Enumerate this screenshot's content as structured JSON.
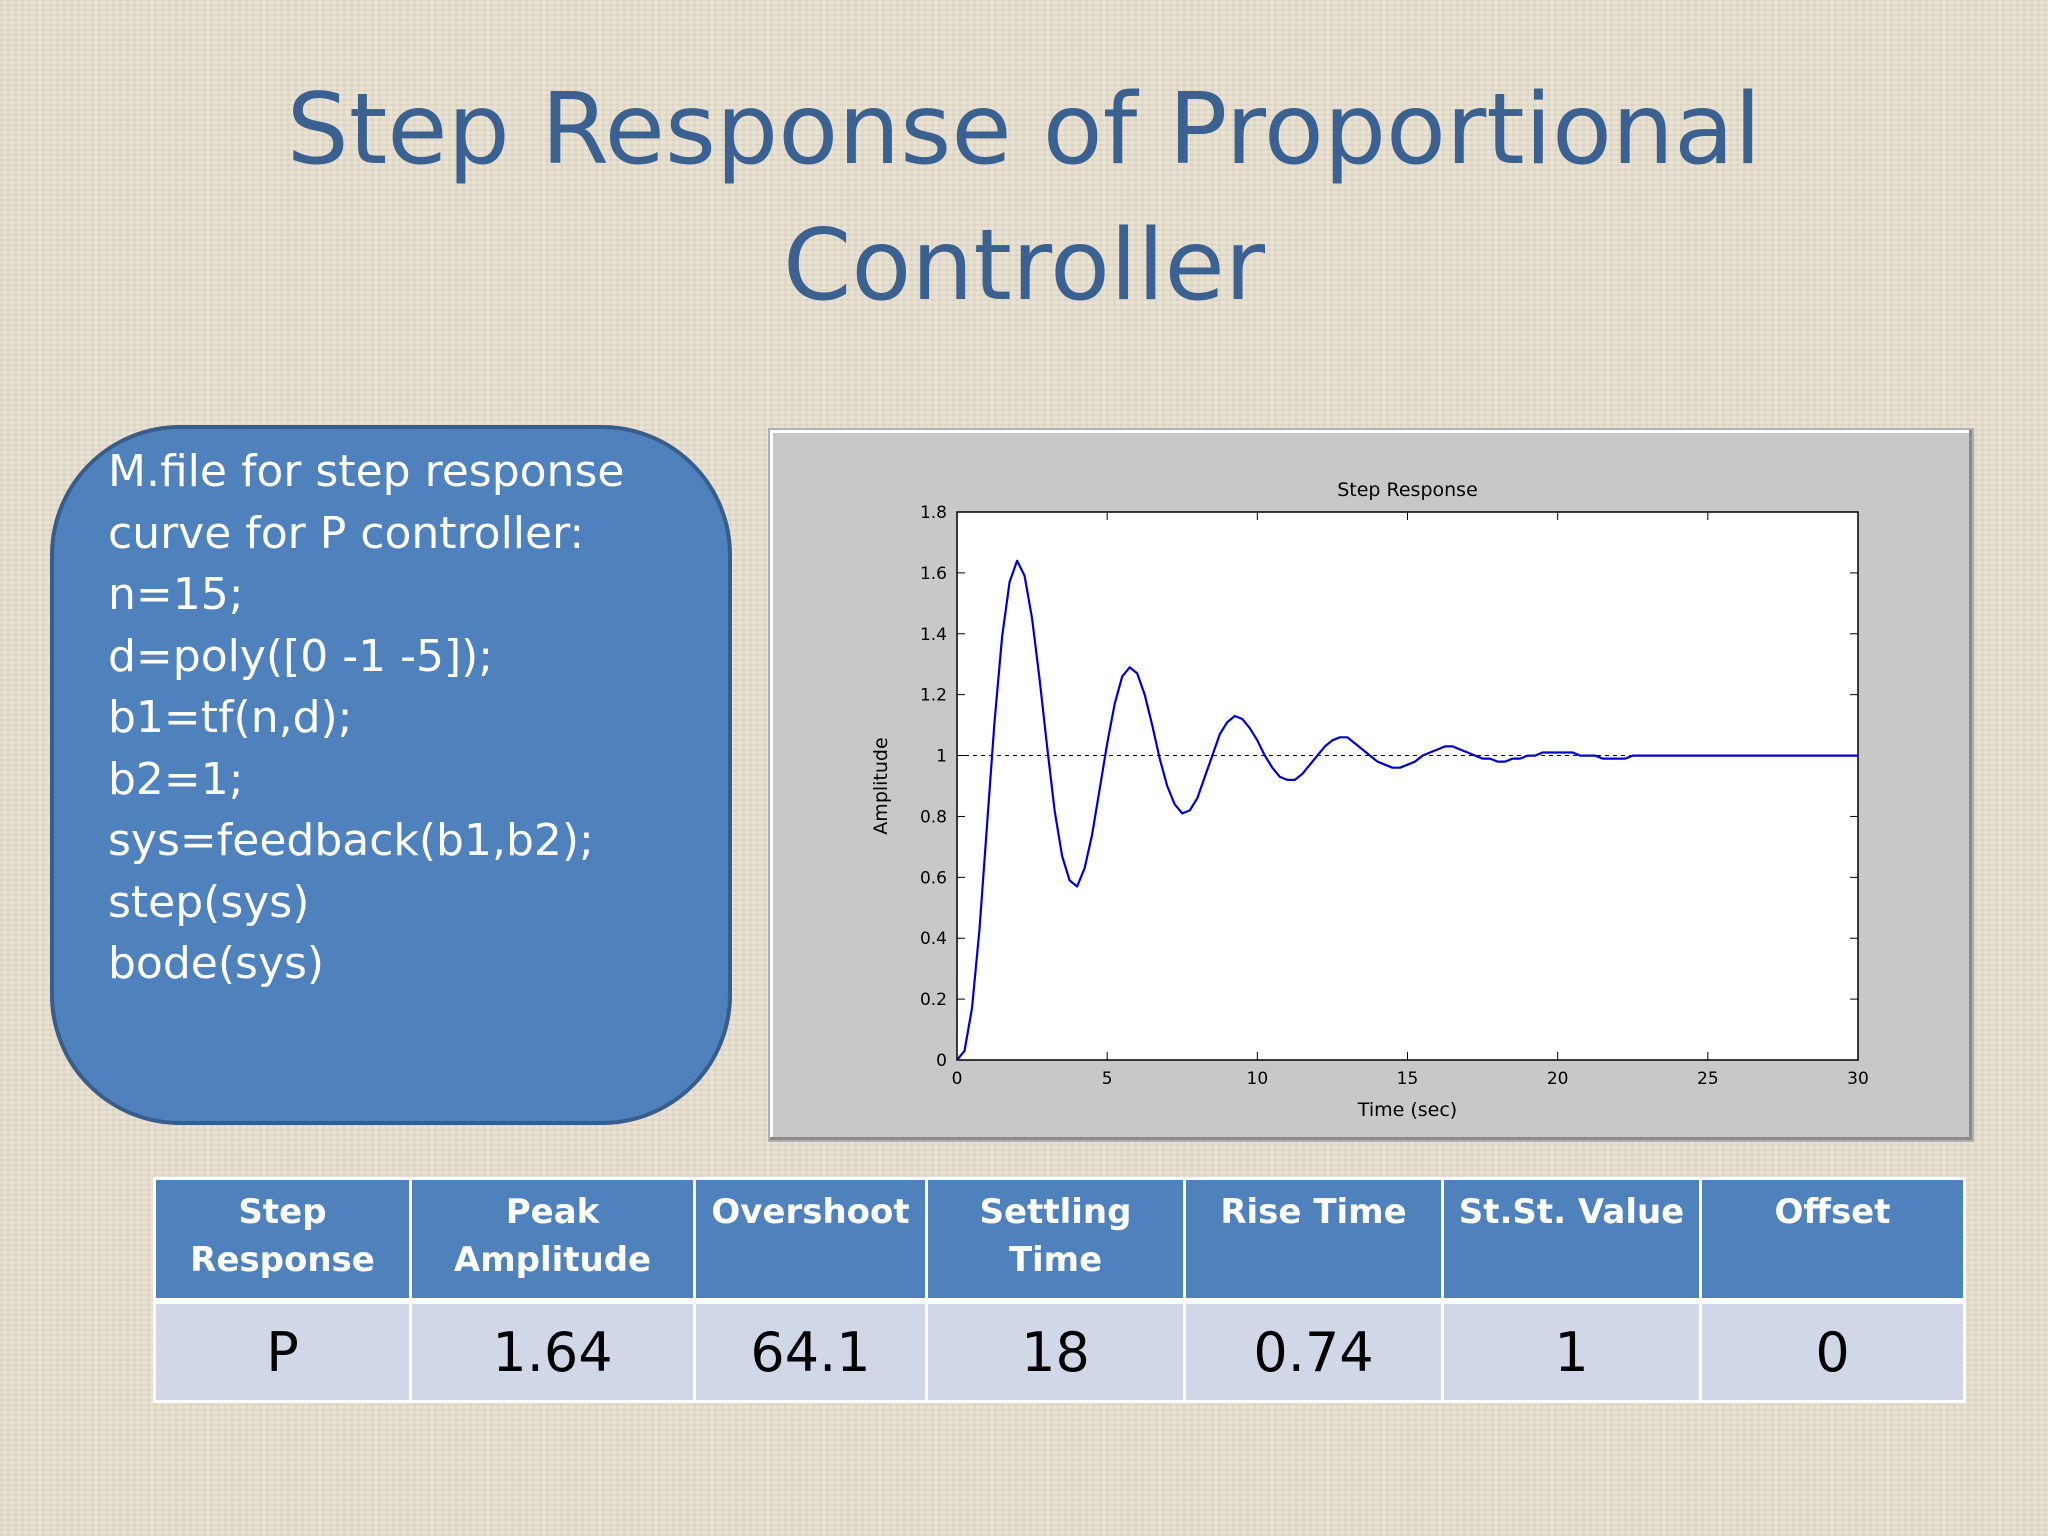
{
  "slide": {
    "title_line1": "Step Response of Proportional",
    "title_line2": "Controller"
  },
  "code_box": {
    "lines": [
      "M.file for step response",
      "curve for P controller:",
      "n=15;",
      "d=poly([0 -1 -5]);",
      "b1=tf(n,d);",
      "b2=1;",
      "sys=feedback(b1,b2);",
      "step(sys)",
      "bode(sys)"
    ]
  },
  "chart_data": {
    "type": "line",
    "title": "Step Response",
    "xlabel": "Time (sec)",
    "ylabel": "Amplitude",
    "xlim": [
      0,
      30
    ],
    "ylim": [
      0,
      1.8
    ],
    "xticks": [
      "0",
      "5",
      "10",
      "15",
      "20",
      "25",
      "30"
    ],
    "yticks": [
      "0",
      "0.2",
      "0.4",
      "0.6",
      "0.8",
      "1",
      "1.2",
      "1.4",
      "1.6",
      "1.8"
    ],
    "reference_line": 1,
    "grid": false,
    "line_color": "#0000cc",
    "series": [
      {
        "x": [
          0,
          0.25,
          0.5,
          0.75,
          1.0,
          1.25,
          1.5,
          1.75,
          2.0,
          2.25,
          2.5,
          2.75,
          3.0,
          3.25,
          3.5,
          3.75,
          4.0,
          4.25,
          4.5,
          4.75,
          5.0,
          5.25,
          5.5,
          5.75,
          6.0,
          6.25,
          6.5,
          6.75,
          7.0,
          7.25,
          7.5,
          7.75,
          8.0,
          8.25,
          8.5,
          8.75,
          9.0,
          9.25,
          9.5,
          9.75,
          10.0,
          10.25,
          10.5,
          10.75,
          11.0,
          11.25,
          11.5,
          11.75,
          12.0,
          12.25,
          12.5,
          12.75,
          13.0,
          13.25,
          13.5,
          13.75,
          14.0,
          14.25,
          14.5,
          14.75,
          15.0,
          15.25,
          15.5,
          15.75,
          16.0,
          16.25,
          16.5,
          16.75,
          17.0,
          17.25,
          17.5,
          17.75,
          18.0,
          18.25,
          18.5,
          18.75,
          19.0,
          19.25,
          19.5,
          19.75,
          20.0,
          20.25,
          20.5,
          20.75,
          21.0,
          21.25,
          21.5,
          21.75,
          22.0,
          22.25,
          22.5,
          22.75,
          23.0,
          23.25,
          23.5,
          23.75,
          24.0,
          24.25,
          24.5,
          24.75,
          25.0,
          25.25,
          25.5,
          25.75,
          26.0,
          26.25,
          26.5,
          26.75,
          27.0,
          27.25,
          27.5,
          27.75,
          28.0,
          28.25,
          28.5,
          28.75,
          29.0,
          29.25,
          29.5,
          29.75,
          30.0
        ],
        "y": [
          0.0,
          0.03,
          0.17,
          0.43,
          0.77,
          1.11,
          1.39,
          1.57,
          1.64,
          1.59,
          1.45,
          1.25,
          1.03,
          0.82,
          0.67,
          0.59,
          0.57,
          0.63,
          0.74,
          0.89,
          1.04,
          1.17,
          1.26,
          1.29,
          1.27,
          1.2,
          1.1,
          0.99,
          0.9,
          0.84,
          0.81,
          0.82,
          0.86,
          0.93,
          1.0,
          1.07,
          1.11,
          1.13,
          1.12,
          1.09,
          1.05,
          1.0,
          0.96,
          0.93,
          0.92,
          0.92,
          0.94,
          0.97,
          1.0,
          1.03,
          1.05,
          1.06,
          1.06,
          1.04,
          1.02,
          1.0,
          0.98,
          0.97,
          0.96,
          0.96,
          0.97,
          0.98,
          1.0,
          1.01,
          1.02,
          1.03,
          1.03,
          1.02,
          1.01,
          1.0,
          0.99,
          0.99,
          0.98,
          0.98,
          0.99,
          0.99,
          1.0,
          1.0,
          1.01,
          1.01,
          1.01,
          1.01,
          1.01,
          1.0,
          1.0,
          1.0,
          0.99,
          0.99,
          0.99,
          0.99,
          1.0,
          1.0,
          1.0,
          1.0,
          1.0,
          1.0,
          1.0,
          1.0,
          1.0,
          1.0,
          1.0,
          1.0,
          1.0,
          1.0,
          1.0,
          1.0,
          1.0,
          1.0,
          1.0,
          1.0,
          1.0,
          1.0,
          1.0,
          1.0,
          1.0,
          1.0,
          1.0,
          1.0,
          1.0,
          1.0,
          1.0
        ]
      }
    ]
  },
  "table": {
    "headers": [
      [
        "Step",
        "Response"
      ],
      [
        "Peak",
        "Amplitude"
      ],
      [
        "Overshoot"
      ],
      [
        "Settling Time"
      ],
      [
        "Rise Time"
      ],
      [
        "St.St. Value"
      ],
      [
        "Offset"
      ]
    ],
    "rows": [
      [
        "P",
        "1.64",
        "64.1",
        "18",
        "0.74",
        "1",
        "0"
      ]
    ]
  }
}
